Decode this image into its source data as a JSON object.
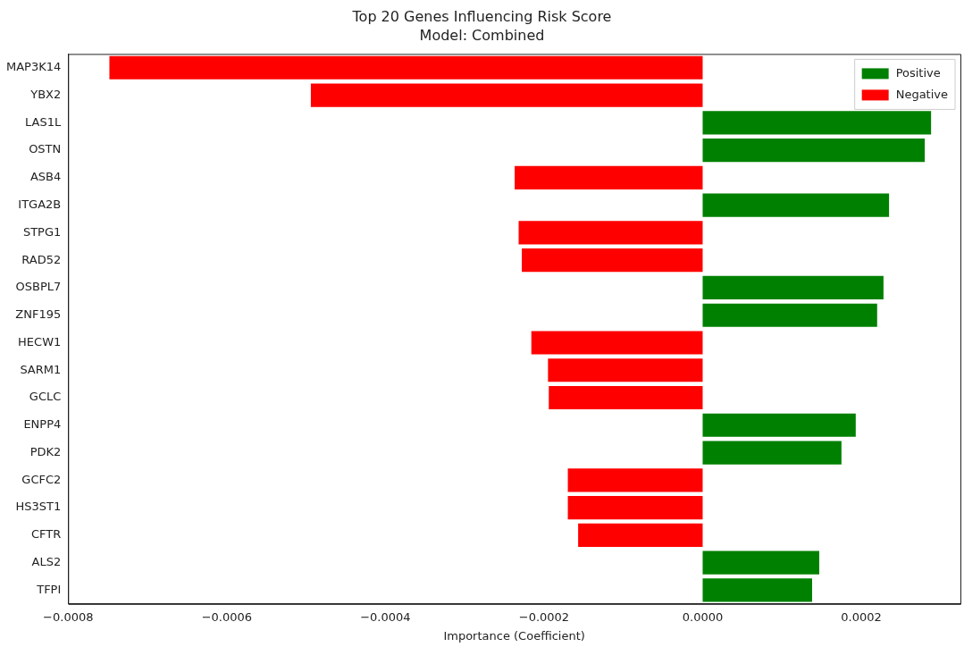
{
  "chart_data": {
    "type": "bar",
    "orientation": "horizontal",
    "title": "Top 20 Genes Influencing Risk Score",
    "subtitle": "Model: Combined",
    "xlabel": "Importance (Coefficient)",
    "categories": [
      "MAP3K14",
      "YBX2",
      "LAS1L",
      "OSTN",
      "ASB4",
      "ITGA2B",
      "STPG1",
      "RAD52",
      "OSBPL7",
      "ZNF195",
      "HECW1",
      "SARM1",
      "GCLC",
      "ENPP4",
      "PDK2",
      "GCFC2",
      "HS3ST1",
      "CFTR",
      "ALS2",
      "TFPI"
    ],
    "series": [
      {
        "name": "Positive",
        "color": "#008000",
        "values": [
          null,
          null,
          0.000288,
          0.00028,
          null,
          0.000235,
          null,
          null,
          0.000228,
          0.00022,
          null,
          null,
          null,
          0.000193,
          0.000175,
          null,
          null,
          null,
          0.000147,
          0.000138
        ]
      },
      {
        "name": "Negative",
        "color": "#ff0000",
        "values": [
          -0.000748,
          -0.000494,
          null,
          null,
          -0.000237,
          null,
          -0.000232,
          -0.000228,
          null,
          null,
          -0.000216,
          -0.000195,
          -0.000194,
          null,
          null,
          -0.00017,
          -0.00017,
          -0.000157,
          null,
          null
        ]
      }
    ],
    "xlim": [
      -0.0008,
      0.000325
    ],
    "xticks": [
      {
        "value": -0.0008,
        "label": "−0.0008"
      },
      {
        "value": -0.0006,
        "label": "−0.0006"
      },
      {
        "value": -0.0004,
        "label": "−0.0004"
      },
      {
        "value": -0.0002,
        "label": "−0.0002"
      },
      {
        "value": 0,
        "label": "0.0000"
      },
      {
        "value": 0.0002,
        "label": "0.0002"
      }
    ],
    "grid": false,
    "legend": "top right"
  }
}
